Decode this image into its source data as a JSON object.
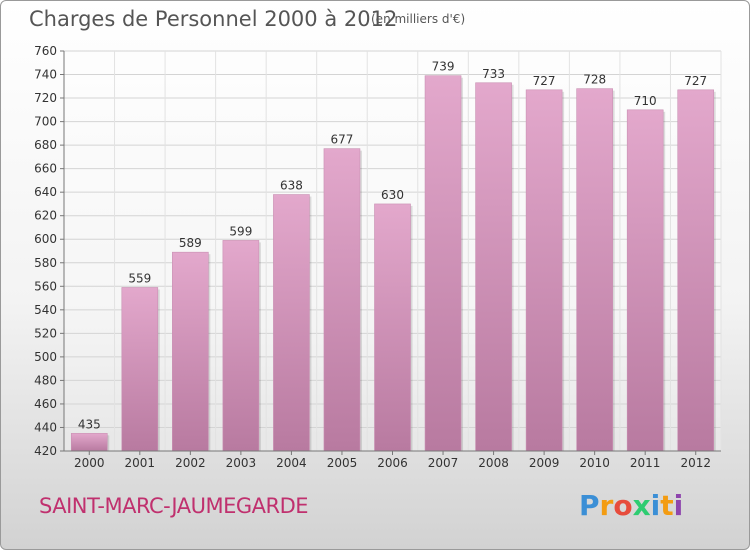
{
  "header": {
    "title": "Charges de Personnel 2000 à 2012",
    "unit_note": "(en milliers d'€)"
  },
  "footer": {
    "city": "SAINT-MARC-JAUMEGARDE",
    "logo": [
      "P",
      "r",
      "o",
      "x",
      "i",
      "t",
      "i"
    ]
  },
  "colors": {
    "bar_top": "#e3a8cc",
    "bar_bottom": "#b87aa0",
    "city_text": "#c0306e"
  },
  "chart_data": {
    "type": "bar",
    "categories": [
      "2000",
      "2001",
      "2002",
      "2003",
      "2004",
      "2005",
      "2006",
      "2007",
      "2008",
      "2009",
      "2010",
      "2011",
      "2012"
    ],
    "values": [
      435,
      559,
      589,
      599,
      638,
      677,
      630,
      739,
      733,
      727,
      728,
      710,
      727
    ],
    "ylim": [
      420,
      760
    ],
    "yticks": [
      420,
      440,
      460,
      480,
      500,
      520,
      540,
      560,
      580,
      600,
      620,
      640,
      660,
      680,
      700,
      720,
      740,
      760
    ],
    "grid": true,
    "data_labels": true
  }
}
